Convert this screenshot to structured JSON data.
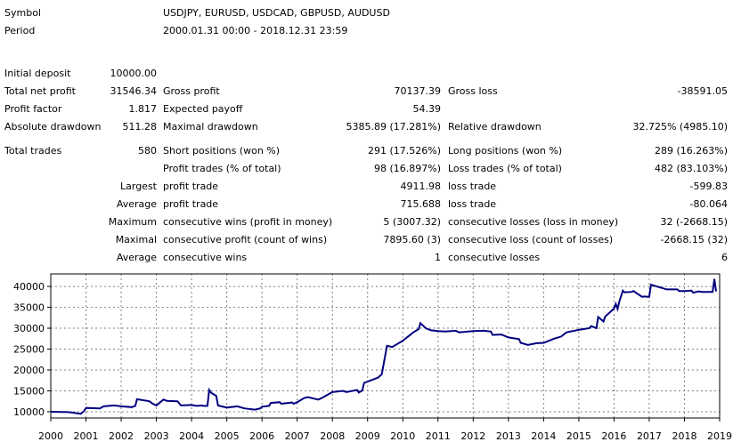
{
  "report": {
    "symbol_label": "Symbol",
    "symbol_value": "USDJPY, EURUSD, USDCAD, GBPUSD, AUDUSD",
    "period_label": "Period",
    "period_value": "2000.01.31 00:00 - 2018.12.31 23:59",
    "initial_deposit_label": "Initial deposit",
    "initial_deposit_value": "10000.00",
    "total_net_profit_label": "Total net profit",
    "total_net_profit_value": "31546.34",
    "gross_profit_label": "Gross profit",
    "gross_profit_value": "70137.39",
    "gross_loss_label": "Gross loss",
    "gross_loss_value": "-38591.05",
    "profit_factor_label": "Profit factor",
    "profit_factor_value": "1.817",
    "expected_payoff_label": "Expected payoff",
    "expected_payoff_value": "54.39",
    "absolute_drawdown_label": "Absolute drawdown",
    "absolute_drawdown_value": "511.28",
    "maximal_drawdown_label": "Maximal drawdown",
    "maximal_drawdown_value": "5385.89 (17.281%)",
    "relative_drawdown_label": "Relative drawdown",
    "relative_drawdown_value": "32.725% (4985.10)",
    "total_trades_label": "Total trades",
    "total_trades_value": "580",
    "short_positions_label": "Short positions (won %)",
    "short_positions_value": "291 (17.526%)",
    "long_positions_label": "Long positions (won %)",
    "long_positions_value": "289 (16.263%)",
    "profit_trades_label": "Profit trades (% of total)",
    "profit_trades_value": "98 (16.897%)",
    "loss_trades_label": "Loss trades (% of total)",
    "loss_trades_value": "482 (83.103%)",
    "largest_label": "Largest",
    "largest_profit_label": "profit trade",
    "largest_profit_value": "4911.98",
    "largest_loss_label": "loss trade",
    "largest_loss_value": "-599.83",
    "average_label": "Average",
    "average_profit_label": "profit trade",
    "average_profit_value": "715.688",
    "average_loss_label": "loss trade",
    "average_loss_value": "-80.064",
    "maximum_label": "Maximum",
    "max_cons_wins_label": "consecutive wins (profit in money)",
    "max_cons_wins_value": "5 (3007.32)",
    "max_cons_losses_label": "consecutive losses (loss in money)",
    "max_cons_losses_value": "32 (-2668.15)",
    "maximal_label": "Maximal",
    "maximal_cons_profit_label": "consecutive profit (count of wins)",
    "maximal_cons_profit_value": "7895.60 (3)",
    "maximal_cons_loss_label": "consecutive loss (count of losses)",
    "maximal_cons_loss_value": "-2668.15 (32)",
    "average2_label": "Average",
    "avg_cons_wins_label": "consecutive wins",
    "avg_cons_wins_value": "1",
    "avg_cons_losses_label": "consecutive losses",
    "avg_cons_losses_value": "6"
  },
  "colors": {
    "line": "#000080",
    "grid": "#808080",
    "border": "#000000"
  },
  "chart_data": {
    "type": "line",
    "title": "",
    "xlabel": "",
    "ylabel": "",
    "xlim": [
      2000,
      2019
    ],
    "ylim": [
      8500,
      43000
    ],
    "yticks": [
      10000,
      15000,
      20000,
      25000,
      30000,
      35000,
      40000
    ],
    "ytick_labels": [
      "10000",
      "15000",
      "20000",
      "25000",
      "30000",
      "35000",
      "40000"
    ],
    "xticks": [
      2000,
      2001,
      2002,
      2003,
      2004,
      2005,
      2006,
      2007,
      2008,
      2009,
      2010,
      2011,
      2012,
      2013,
      2014,
      2015,
      2016,
      2017,
      2018,
      2019
    ],
    "xtick_labels": [
      "2000",
      "2001",
      "2002",
      "2003",
      "2004",
      "2005",
      "2006",
      "2007",
      "2008",
      "2009",
      "2010",
      "2011",
      "2012",
      "2013",
      "2014",
      "2015",
      "2016",
      "2017",
      "2018",
      "2019"
    ],
    "grid": true,
    "series": [
      {
        "name": "",
        "x": [
          2000.0,
          2000.5,
          2000.6,
          2000.75,
          2000.85,
          2000.95,
          2001.0,
          2001.4,
          2001.5,
          2001.8,
          2002.0,
          2002.3,
          2002.4,
          2002.45,
          2002.8,
          2002.9,
          2003.0,
          2003.2,
          2003.3,
          2003.6,
          2003.7,
          2004.0,
          2004.15,
          2004.3,
          2004.32,
          2004.45,
          2004.5,
          2004.55,
          2004.6,
          2004.7,
          2004.75,
          2005.0,
          2005.3,
          2005.5,
          2005.8,
          2005.95,
          2006.0,
          2006.2,
          2006.25,
          2006.5,
          2006.55,
          2006.85,
          2006.9,
          2007.0,
          2007.2,
          2007.3,
          2007.6,
          2007.7,
          2008.0,
          2008.3,
          2008.4,
          2008.7,
          2008.75,
          2008.85,
          2008.9,
          2009.3,
          2009.35,
          2009.4,
          2009.42,
          2009.55,
          2009.7,
          2010.0,
          2010.3,
          2010.45,
          2010.5,
          2010.65,
          2010.8,
          2011.0,
          2011.2,
          2011.5,
          2011.6,
          2012.0,
          2012.3,
          2012.5,
          2012.55,
          2012.8,
          2013.0,
          2013.3,
          2013.35,
          2013.55,
          2013.8,
          2014.0,
          2014.3,
          2014.5,
          2014.65,
          2015.0,
          2015.3,
          2015.35,
          2015.5,
          2015.55,
          2015.7,
          2015.75,
          2016.0,
          2016.05,
          2016.1,
          2016.15,
          2016.25,
          2016.3,
          2016.5,
          2016.55,
          2016.8,
          2016.85,
          2017.0,
          2017.05,
          2017.5,
          2017.8,
          2017.85,
          2018.0,
          2018.2,
          2018.25,
          2018.4,
          2018.5,
          2018.8,
          2018.85,
          2018.9
        ],
        "y": [
          10000,
          9900,
          9800,
          9600,
          9500,
          10200,
          10900,
          10800,
          11300,
          11500,
          11300,
          11100,
          11400,
          13000,
          12500,
          11900,
          11500,
          12900,
          12600,
          12500,
          11500,
          11600,
          11400,
          11500,
          11400,
          11400,
          15200,
          14600,
          14300,
          13800,
          11500,
          11000,
          11300,
          10800,
          10500,
          10800,
          11200,
          11400,
          12100,
          12300,
          11900,
          12200,
          11900,
          12300,
          13300,
          13500,
          12900,
          13300,
          14700,
          15000,
          14700,
          15200,
          14600,
          15100,
          16900,
          18200,
          18600,
          18900,
          19700,
          25800,
          25500,
          27000,
          29000,
          29800,
          31200,
          30000,
          29500,
          29300,
          29200,
          29400,
          29000,
          29300,
          29400,
          29200,
          28400,
          28500,
          27800,
          27400,
          26500,
          26000,
          26400,
          26500,
          27500,
          28000,
          29000,
          29600,
          30000,
          30500,
          30000,
          32700,
          31600,
          32800,
          34700,
          35800,
          34600,
          36400,
          39000,
          38600,
          38700,
          38900,
          37500,
          37600,
          37500,
          40400,
          39300,
          39300,
          38900,
          38900,
          39000,
          38500,
          38800,
          38700,
          38700,
          41800,
          38800
        ]
      }
    ]
  }
}
